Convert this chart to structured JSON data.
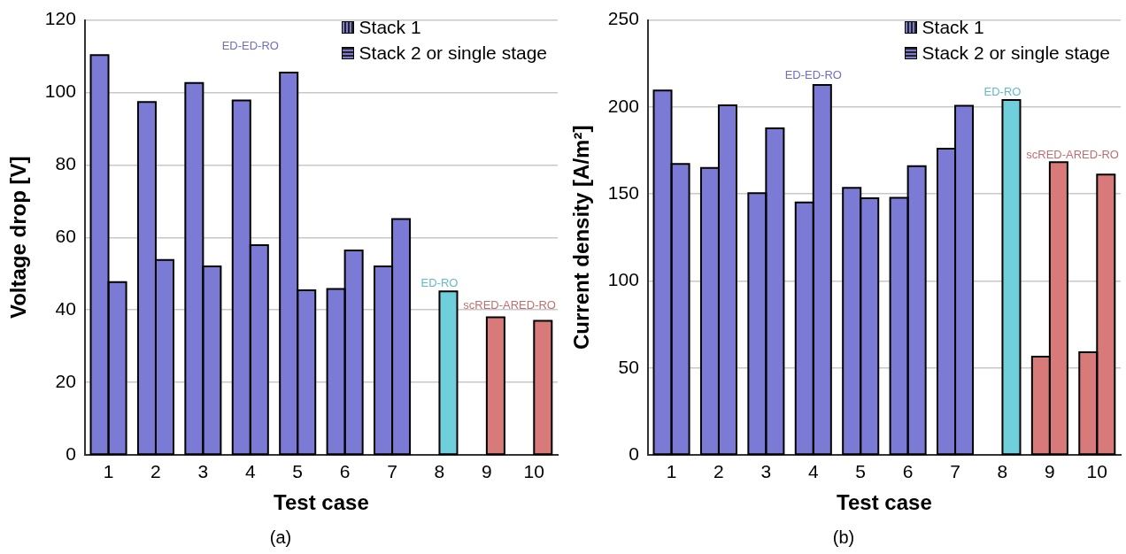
{
  "chart_data": [
    {
      "type": "bar",
      "categories": [
        "1",
        "2",
        "3",
        "4",
        "5",
        "6",
        "7",
        "8",
        "9",
        "10"
      ],
      "series": [
        {
          "name": "Stack 1",
          "color": "#7b7bd6",
          "colors": [
            "#7b7bd6",
            "#7b7bd6",
            "#7b7bd6",
            "#7b7bd6",
            "#7b7bd6",
            "#7b7bd6",
            "#7b7bd6",
            "#6fd0dc",
            "#d97a7a",
            "#d97a7a"
          ],
          "values": [
            110.3,
            97.4,
            102.6,
            97.8,
            105.5,
            45.8,
            52,
            null,
            null,
            null
          ]
        },
        {
          "name": "Stack 2 or single stage",
          "color": "#7b7bd6",
          "colors": [
            "#7b7bd6",
            "#7b7bd6",
            "#7b7bd6",
            "#7b7bd6",
            "#7b7bd6",
            "#7b7bd6",
            "#7b7bd6",
            "#6fd0dc",
            "#d97a7a",
            "#d97a7a"
          ],
          "values": [
            47.7,
            53.8,
            52,
            57.9,
            45.4,
            56.4,
            65.1,
            45.1,
            38,
            37
          ]
        }
      ],
      "xlabel": "Test case",
      "ylabel": "Voltage drop [V]",
      "ylim": [
        0,
        120
      ],
      "yticks": [
        0,
        20,
        40,
        60,
        80,
        100,
        120
      ],
      "grid": "y",
      "legend": "top right",
      "annotations": [
        "ED-ED-RO",
        "ED-RO",
        "scRED-ARED-RO",
        "(a)"
      ]
    },
    {
      "type": "bar",
      "categories": [
        "1",
        "2",
        "3",
        "4",
        "5",
        "6",
        "7",
        "8",
        "9",
        "10"
      ],
      "series": [
        {
          "name": "Stack 1",
          "color": "#7b7bd6",
          "colors": [
            "#7b7bd6",
            "#7b7bd6",
            "#7b7bd6",
            "#7b7bd6",
            "#7b7bd6",
            "#7b7bd6",
            "#7b7bd6",
            "#6fd0dc",
            "#d97a7a",
            "#d97a7a"
          ],
          "values": [
            209.5,
            164.9,
            150.4,
            145.1,
            153.5,
            147.8,
            176,
            null,
            56.5,
            59
          ]
        },
        {
          "name": "Stack 2 or single stage",
          "color": "#7b7bd6",
          "colors": [
            "#7b7bd6",
            "#7b7bd6",
            "#7b7bd6",
            "#7b7bd6",
            "#7b7bd6",
            "#7b7bd6",
            "#7b7bd6",
            "#6fd0dc",
            "#d97a7a",
            "#d97a7a"
          ],
          "values": [
            167.2,
            201,
            187.7,
            212.6,
            147.6,
            166,
            200.7,
            204,
            168.3,
            161.1
          ]
        }
      ],
      "xlabel": "Test case",
      "ylabel": "Current density [A/m²]",
      "ylim": [
        0,
        250
      ],
      "yticks": [
        0,
        50,
        100,
        150,
        200,
        250
      ],
      "grid": "y",
      "legend": "top right",
      "annotations": [
        "ED-ED-RO",
        "ED-RO",
        "scRED-ARED-RO",
        "(b)"
      ]
    }
  ]
}
